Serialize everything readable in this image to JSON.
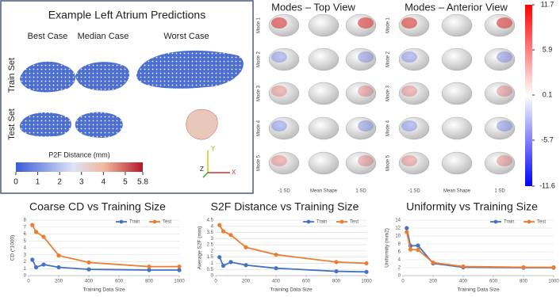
{
  "left_panel": {
    "title": "Example Left Atrium Predictions",
    "columns": [
      "Best Case",
      "Median Case",
      "Worst Case"
    ],
    "rows": [
      "Train Set",
      "Test Set"
    ],
    "colorbar": {
      "label": "P2F Distance (mm)",
      "lim": [
        0,
        5.8
      ],
      "ticks": [
        0,
        1,
        2,
        3,
        4,
        5,
        5.8
      ]
    },
    "axes": [
      "Y",
      "Z",
      "X"
    ]
  },
  "modes_top": {
    "title": "Modes – Top View",
    "rows": [
      "Mode 1",
      "Mode 2",
      "Mode 3",
      "Mode 4",
      "Mode 5"
    ],
    "columns": [
      "-1 SD",
      "Mean Shape",
      "1 SD"
    ]
  },
  "modes_anterior": {
    "title": "Modes – Anterior View",
    "rows": [
      "Mode 1",
      "Mode 2",
      "Mode 3",
      "Mode 4",
      "Mode 5"
    ],
    "columns": [
      "-1 SD",
      "Mean Shape",
      "1 SD"
    ]
  },
  "mode_colorbar": {
    "lim": [
      -11.6,
      11.7
    ],
    "ticks": [
      11.7,
      5.9,
      0.1,
      -5.7,
      -11.6
    ]
  },
  "chart_data": [
    {
      "type": "line",
      "title": "Coarse CD vs Training Size",
      "x_label": "Training Data Size",
      "y_label": "CD (*1000)",
      "x": [
        25,
        50,
        100,
        200,
        400,
        800,
        1000
      ],
      "xlim": [
        0,
        1000
      ],
      "xticks": [
        0,
        200,
        400,
        600,
        800,
        1000
      ],
      "ylim": [
        0,
        8
      ],
      "yticks": [
        0,
        1,
        2,
        3,
        4,
        5,
        6,
        7,
        8
      ],
      "grid": true,
      "legend": "top-right",
      "series": [
        {
          "name": "Train",
          "color": "#4472c4",
          "values": [
            2.3,
            1.2,
            1.6,
            1.2,
            0.9,
            0.8,
            0.8
          ]
        },
        {
          "name": "Test",
          "color": "#ed7d31",
          "values": [
            7.3,
            6.3,
            5.6,
            2.9,
            1.9,
            1.3,
            1.3
          ]
        }
      ]
    },
    {
      "type": "line",
      "title": "S2F Distance vs Training Size",
      "x_label": "Training Data Size",
      "y_label": "Average S2F (mm)",
      "x": [
        25,
        50,
        100,
        200,
        400,
        800,
        1000
      ],
      "xlim": [
        0,
        1000
      ],
      "xticks": [
        0,
        200,
        400,
        600,
        800,
        1000
      ],
      "ylim": [
        0,
        4.5
      ],
      "yticks": [
        0,
        0.5,
        1,
        1.5,
        2,
        2.5,
        3,
        3.5,
        4,
        4.5
      ],
      "grid": true,
      "legend": "top-right",
      "series": [
        {
          "name": "Train",
          "color": "#4472c4",
          "values": [
            1.5,
            0.8,
            1.1,
            0.85,
            0.6,
            0.35,
            0.3
          ]
        },
        {
          "name": "Test",
          "color": "#ed7d31",
          "values": [
            4.1,
            3.6,
            3.3,
            2.3,
            1.7,
            1.1,
            1.0
          ]
        }
      ]
    },
    {
      "type": "line",
      "title": "Uniformity vs Training Size",
      "x_label": "Training Data Size",
      "y_label": "Uniformity (mm2)",
      "x": [
        25,
        50,
        100,
        200,
        400,
        800,
        1000
      ],
      "xlim": [
        0,
        1000
      ],
      "xticks": [
        0,
        200,
        400,
        600,
        800,
        1000
      ],
      "ylim": [
        0,
        14
      ],
      "yticks": [
        0,
        2,
        4,
        6,
        8,
        10,
        12,
        14
      ],
      "grid": true,
      "legend": "top-right",
      "series": [
        {
          "name": "Train",
          "color": "#4472c4",
          "values": [
            12,
            7.5,
            7.6,
            3.1,
            2.1,
            2.0,
            2.0
          ]
        },
        {
          "name": "Test",
          "color": "#ed7d31",
          "values": [
            11,
            6.6,
            6.5,
            3.3,
            2.3,
            2.1,
            2.1
          ]
        }
      ]
    }
  ]
}
